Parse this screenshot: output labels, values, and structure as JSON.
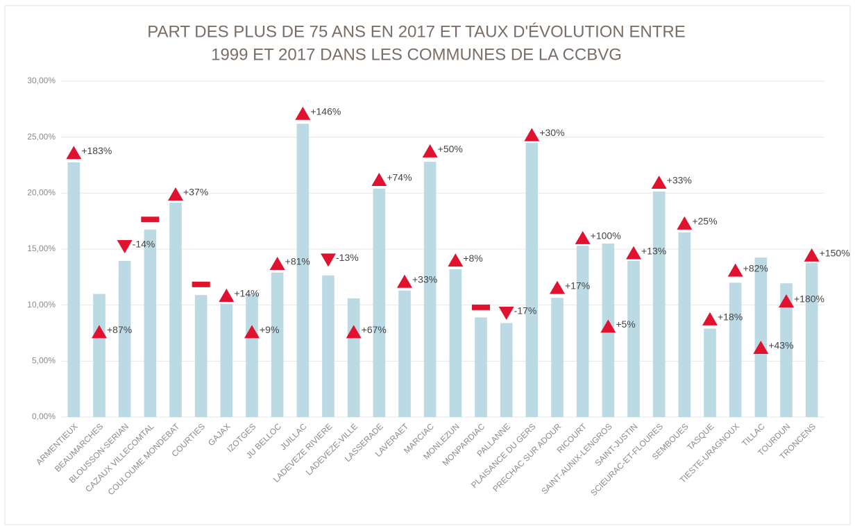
{
  "chart_data": {
    "type": "bar",
    "title": [
      "PART DES PLUS DE 75 ANS EN 2017 ET TAUX D'ÉVOLUTION ENTRE",
      "1999 ET 2017 DANS LES COMMUNES DE LA CCBVG"
    ],
    "categories": [
      "ARMENTIEUX",
      "BEAUMARCHES",
      "BLOUSSON-SERIAN",
      "CAZAUX VILLECOMTAL",
      "COULOUME MONDEBAT",
      "COURTIES",
      "GAJAX",
      "IZOTGES",
      "JU BELLOC",
      "JUILLAC",
      "LADEVEZE RIVIERE",
      "LADEVEZE-VILLE",
      "LASSERADE",
      "LAVERAET",
      "MARCIAC",
      "MONLEZUN",
      "MONPARDIAC",
      "PALLANNE",
      "PLAISANCE DU GERS",
      "PRECHAC SUR ADOUR",
      "RICOURT",
      "SAINT-AUNIX-LENGROS",
      "SAINT-JUSTIN",
      "SCIEURAC-ET-FLOURES",
      "SEMBOUES",
      "TASQUE",
      "TIESTE-URAGNOUX",
      "TILLAC",
      "TOURDUN",
      "TRONCENS"
    ],
    "values": [
      22.75,
      11.0,
      13.95,
      16.75,
      19.15,
      10.9,
      10.1,
      11.0,
      12.9,
      26.2,
      12.65,
      10.6,
      20.4,
      11.3,
      22.8,
      13.2,
      8.9,
      8.4,
      24.5,
      10.65,
      15.3,
      15.5,
      13.95,
      20.15,
      16.5,
      7.9,
      12.0,
      14.25,
      11.95,
      13.75
    ],
    "color": "#bcdae3",
    "markers": {
      "color": "#e0122f",
      "values": [
        23.6,
        7.6,
        15.25,
        17.65,
        19.9,
        11.85,
        10.85,
        7.6,
        13.7,
        27.1,
        14.05,
        7.6,
        21.2,
        12.1,
        23.75,
        14.0,
        9.8,
        9.3,
        25.2,
        11.55,
        16.0,
        8.1,
        14.65,
        20.95,
        17.3,
        8.75,
        13.1,
        6.2,
        10.35,
        14.45
      ],
      "shapes": [
        "up",
        "up",
        "down",
        "dash",
        "up",
        "dash",
        "up",
        "up",
        "up",
        "up",
        "down",
        "up",
        "up",
        "up",
        "up",
        "up",
        "dash",
        "down",
        "up",
        "up",
        "up",
        "up",
        "up",
        "up",
        "up",
        "up",
        "up",
        "up",
        "up",
        "up"
      ],
      "labels": [
        "+183%",
        "+87%",
        "-14%",
        null,
        "+37%",
        null,
        "+14%",
        "+9%",
        "+81%",
        "+146%",
        "-13%",
        "+67%",
        "+74%",
        "+33%",
        "+50%",
        "+8%",
        null,
        "-17%",
        "+30%",
        "+17%",
        "+100%",
        "+5%",
        "+13%",
        "+33%",
        "+25%",
        "+18%",
        "+82%",
        "+43%",
        "+180%",
        "+150%"
      ]
    },
    "ylim": [
      0,
      30
    ],
    "yticks": [
      {
        "value": 0,
        "label": "0,00%"
      },
      {
        "value": 5,
        "label": "5,00%"
      },
      {
        "value": 10,
        "label": "10,00%"
      },
      {
        "value": 15,
        "label": "15,00%"
      },
      {
        "value": 20,
        "label": "20,00%"
      },
      {
        "value": 25,
        "label": "25,00%"
      },
      {
        "value": 30,
        "label": "30,00%"
      }
    ],
    "grid": true
  }
}
